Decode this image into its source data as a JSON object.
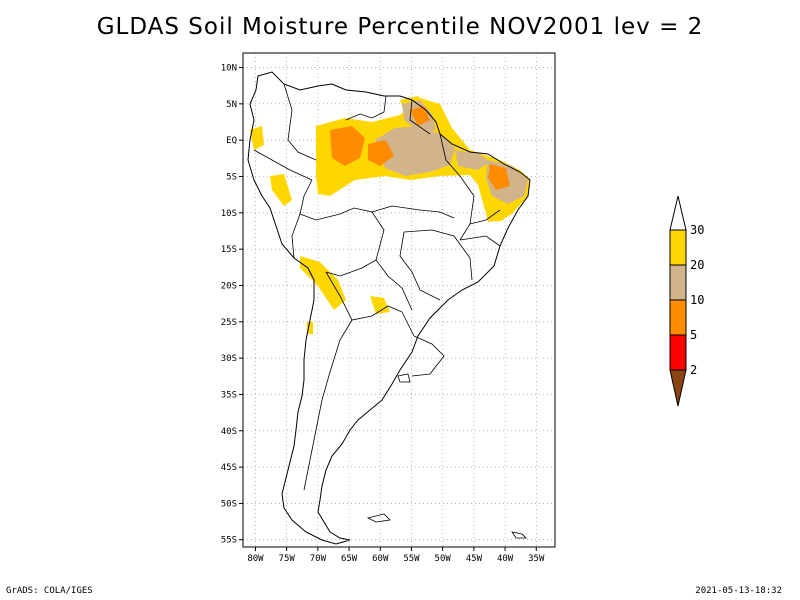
{
  "title": "GLDAS Soil Moisture Percentile NOV2001 lev = 2",
  "footer": {
    "left": "GrADS: COLA/IGES",
    "right": "2021-05-13-18:32"
  },
  "map": {
    "lat_labels": [
      "10N",
      "5N",
      "EQ",
      "5S",
      "10S",
      "15S",
      "20S",
      "25S",
      "30S",
      "35S",
      "40S",
      "45S",
      "50S",
      "55S"
    ],
    "lon_labels": [
      "80W",
      "75W",
      "70W",
      "65W",
      "60W",
      "55W",
      "50W",
      "45W",
      "40W",
      "35W"
    ],
    "lon_range": [
      -82,
      -32
    ],
    "lat_range": [
      -56,
      12
    ],
    "grid": true
  },
  "legend": {
    "levels": [
      "2",
      "5",
      "10",
      "20",
      "30"
    ],
    "colors": {
      "below_2": "#8b4513",
      "2_5": "#ff0000",
      "5_10": "#ff8c00",
      "10_20": "#d2b48c",
      "20_30": "#ffd700",
      "above_30": "#ffffff"
    }
  }
}
